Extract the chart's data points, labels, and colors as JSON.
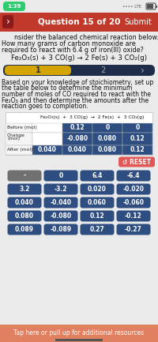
{
  "bg_color": "#ebebeb",
  "status_bar_time": "1:39",
  "header_color": "#c0392b",
  "header_text": "Question 15 of 20",
  "header_submit": "Submit",
  "question_line1": "nsider the balanced chemical reaction below.",
  "question_line2": "How many grams of carbon monoxide are",
  "question_line3": "required to react with 6.4 g of iron(III) oxide?",
  "equation": "Fe₂O₃(s) + 3 CO(g) → 2 Fe(s) + 3 CO₂(g)",
  "tab1": "1",
  "tab2": "2",
  "body_line1": "Based on your knowledge of stoichiometry, set up",
  "body_line2": "the table below to determine the minimum",
  "body_line3": "number of moles of CO required to react with the",
  "body_line4": "Fe₂O₃ and then determine the amounts after the",
  "body_line5": "reaction goes to completion.",
  "table_header_txt": "Fe₂O₃(s)  +  3 CO(g)  →  2 Fe(s)  +  3 CO₂(g)",
  "row_labels": [
    "Before (mol)",
    "Change\n(mol)",
    "After (mol)"
  ],
  "table_data": [
    [
      "",
      "0.12",
      "0",
      "0"
    ],
    [
      "",
      "-0.080",
      "0.080",
      "0.12"
    ],
    [
      "0.040",
      "0.040",
      "0.080",
      "0.12"
    ]
  ],
  "blank_cell_color": "#ffffff",
  "filled_cell_color": "#2e4e82",
  "table_text_color": "#ffffff",
  "reset_btn_color": "#e05858",
  "reset_text": "↺ RESET",
  "keypad_dark": "#2e4e82",
  "keypad_gray": "#707070",
  "keypad_buttons": [
    [
      "-",
      "0",
      "6.4",
      "-6.4"
    ],
    [
      "3.2",
      "-3.2",
      "0.020",
      "-0.020"
    ],
    [
      "0.040",
      "-0.040",
      "0.060",
      "-0.060"
    ],
    [
      "0.080",
      "-0.080",
      "0.12",
      "-0.12"
    ],
    [
      "0.089",
      "-0.089",
      "0.27",
      "-0.27"
    ]
  ],
  "footer_color": "#e08060",
  "footer_text": "Tap here or pull up for additional resources",
  "nav_arrow_color": "#8b1a1a",
  "tab_bg": "#1e2d4a",
  "tab_active_color": "#d4a500",
  "tab_inactive_text": "#aaaaaa"
}
